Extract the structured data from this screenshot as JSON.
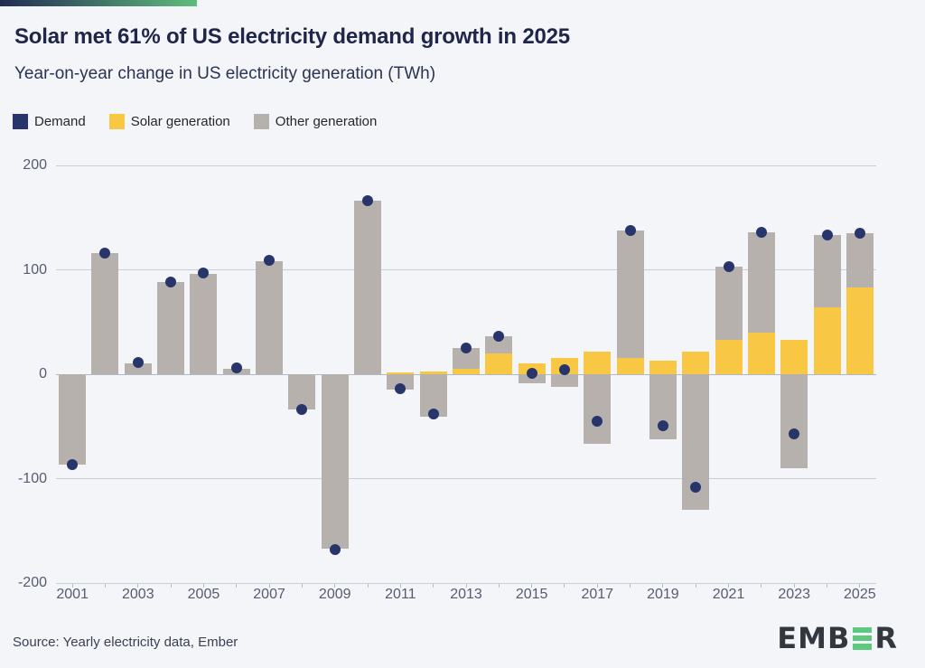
{
  "header": {
    "title": "Solar met 61% of US electricity demand growth in 2025",
    "subtitle": "Year-on-year change in US electricity generation (TWh)"
  },
  "legend": {
    "items": [
      {
        "label": "Demand",
        "color": "#28356b"
      },
      {
        "label": "Solar generation",
        "color": "#f8c845"
      },
      {
        "label": "Other generation",
        "color": "#b7b1ae"
      }
    ]
  },
  "footer": {
    "source": "Source: Yearly electricity data, Ember",
    "logo": {
      "prefix": "EMB",
      "green_letter": "E",
      "suffix": "R",
      "green": "#5dc87e",
      "dark": "#33383f"
    }
  },
  "colors": {
    "background": "#f4f5f8",
    "accent_gradient_start": "#222b52",
    "accent_gradient_end": "#5fbd7d",
    "gridline": "#c9cdd8",
    "axis_label": "#565c71",
    "title_text": "#20264a"
  },
  "chart_data": {
    "type": "bar",
    "subtype": "stacked-bars-with-scatter-overlay",
    "title": "Solar met 61% of US electricity demand growth in 2025",
    "subtitle": "Year-on-year change in US electricity generation (TWh)",
    "ylabel": "TWh",
    "ylim": [
      -200,
      200
    ],
    "yticks": [
      200,
      100,
      0,
      -100,
      -200
    ],
    "grid": "horizontal",
    "legend_position": "top-left",
    "categories": [
      2001,
      2002,
      2003,
      2004,
      2005,
      2006,
      2007,
      2008,
      2009,
      2010,
      2011,
      2012,
      2013,
      2014,
      2015,
      2016,
      2017,
      2018,
      2019,
      2020,
      2021,
      2022,
      2023,
      2024,
      2025
    ],
    "xtick_labels": [
      2001,
      2003,
      2005,
      2007,
      2009,
      2011,
      2013,
      2015,
      2017,
      2019,
      2021,
      2023,
      2025
    ],
    "series": [
      {
        "name": "Solar generation",
        "type": "bar",
        "color": "#f8c845",
        "values": [
          0,
          0,
          0,
          0,
          0,
          0,
          0,
          0,
          0,
          0,
          2,
          3,
          5,
          20,
          10,
          16,
          22,
          16,
          13,
          22,
          33,
          40,
          33,
          64,
          83
        ]
      },
      {
        "name": "Other generation",
        "type": "bar",
        "color": "#b7b1ae",
        "values": [
          -87,
          116,
          10,
          88,
          96,
          5,
          108,
          -34,
          -167,
          166,
          -15,
          -41,
          20,
          16,
          -9,
          -12,
          -67,
          122,
          -62,
          -130,
          70,
          96,
          -90,
          69,
          52
        ]
      },
      {
        "name": "Demand",
        "type": "scatter",
        "color": "#28356b",
        "values": [
          -87,
          116,
          11,
          88,
          97,
          6,
          109,
          -34,
          -168,
          166,
          -14,
          -38,
          25,
          36,
          1,
          4,
          -45,
          138,
          -49,
          -108,
          103,
          136,
          -57,
          133,
          135
        ]
      }
    ]
  }
}
